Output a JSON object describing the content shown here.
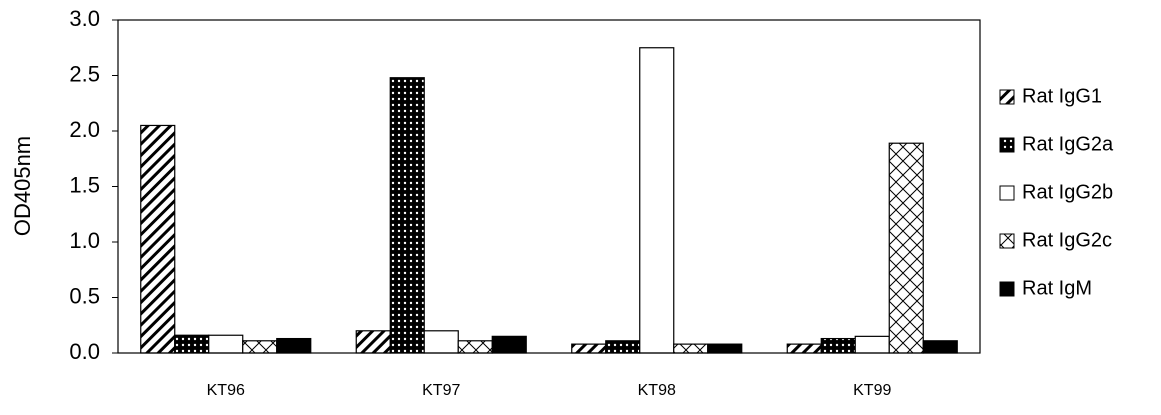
{
  "chart_data": {
    "type": "bar",
    "y_label": "OD405nm",
    "categories": [
      "KT96",
      "KT97",
      "KT98",
      "KT99"
    ],
    "series": [
      {
        "name": "Rat IgG1",
        "color": "#000000",
        "pattern": "diagonal",
        "values": [
          2.05,
          0.2,
          0.08,
          0.08
        ]
      },
      {
        "name": "Rat IgG2a",
        "color": "#000000",
        "pattern": "dots",
        "values": [
          0.16,
          2.48,
          0.11,
          0.13
        ]
      },
      {
        "name": "Rat IgG2b",
        "color": "#ffffff",
        "pattern": "none",
        "values": [
          0.16,
          0.2,
          2.75,
          0.15
        ]
      },
      {
        "name": "Rat IgG2c",
        "color": "#000000",
        "pattern": "crosshatch",
        "values": [
          0.11,
          0.11,
          0.08,
          1.89
        ]
      },
      {
        "name": "Rat IgM",
        "color": "#000000",
        "pattern": "solid",
        "values": [
          0.13,
          0.15,
          0.08,
          0.11
        ]
      }
    ],
    "ylim": [
      0,
      3
    ],
    "yticks": [
      {
        "value": 0,
        "label": "0.0"
      },
      {
        "value": 0.5,
        "label": "0.5"
      },
      {
        "value": 1,
        "label": "1.0"
      },
      {
        "value": 1.5,
        "label": "1.5"
      },
      {
        "value": 2,
        "label": "2.0"
      },
      {
        "value": 2.5,
        "label": "2.5"
      },
      {
        "value": 3,
        "label": "3.0"
      }
    ],
    "grid": false,
    "legend": "right"
  }
}
